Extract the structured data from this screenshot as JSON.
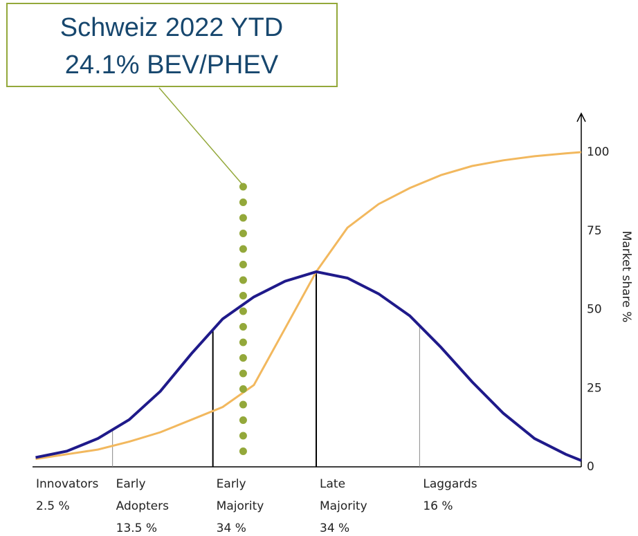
{
  "chart_data": {
    "type": "line",
    "annotation": {
      "title": "Schweiz 2022 YTD",
      "value": 24.1,
      "label": "24.1% BEV/PHEV",
      "color": "#93a83a"
    },
    "categories": [
      "Innovators",
      "Early Adopters",
      "Early Majority",
      "Late Majority",
      "Laggards"
    ],
    "values": [
      2.5,
      13.5,
      34,
      34,
      16
    ],
    "value_labels": [
      "2.5 %",
      "13.5 %",
      "34 %",
      "34 %",
      "16 %"
    ],
    "x": [
      -2.7,
      -2.4,
      -2.1,
      -1.8,
      -1.5,
      -1.2,
      -0.9,
      -0.6,
      -0.3,
      0,
      0.3,
      0.6,
      0.9,
      1.2,
      1.5,
      1.8,
      2.1,
      2.4,
      2.55
    ],
    "xlim": [
      -2.73,
      2.55
    ],
    "series": [
      {
        "color": "#f2b85e",
        "values": [
          2.5,
          4,
          5.5,
          8,
          11,
          15,
          19,
          26,
          44,
          62,
          76,
          83.5,
          88.6,
          92.7,
          95.6,
          97.4,
          98.7,
          99.6,
          100
        ]
      },
      {
        "color": "#1f1a8a",
        "values": [
          3,
          5,
          9,
          15,
          24,
          36,
          47,
          54,
          59,
          62,
          60,
          55,
          48,
          38,
          27,
          17,
          9,
          4,
          2
        ]
      }
    ],
    "ylabel": "Market share %",
    "ylim": [
      0,
      100
    ],
    "yticks": [
      0,
      25,
      50,
      75,
      100
    ]
  }
}
